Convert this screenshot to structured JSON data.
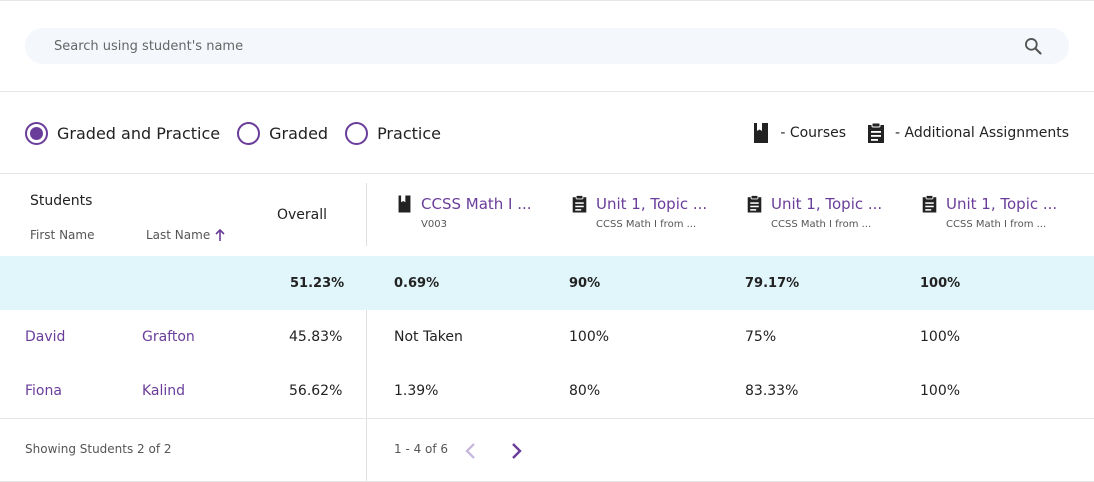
{
  "search": {
    "placeholder": "Search using student's name"
  },
  "filters": {
    "options": [
      {
        "label": "Graded and Practice",
        "selected": true
      },
      {
        "label": "Graded",
        "selected": false
      },
      {
        "label": "Practice",
        "selected": false
      }
    ]
  },
  "legend": {
    "courses_label": "- Courses",
    "assignments_label": "- Additional Assignments"
  },
  "table": {
    "header": {
      "students": "Students",
      "first_name": "First Name",
      "last_name": "Last Name",
      "overall": "Overall"
    },
    "columns": [
      {
        "title": "CCSS Math I ...",
        "subtitle": "V003",
        "icon": "book-icon"
      },
      {
        "title": "Unit 1, Topic ...",
        "subtitle": "CCSS Math I from ...",
        "icon": "clipboard-icon"
      },
      {
        "title": "Unit 1, Topic ...",
        "subtitle": "CCSS Math I from ...",
        "icon": "clipboard-icon"
      },
      {
        "title": "Unit 1, Topic ...",
        "subtitle": "CCSS Math I from ...",
        "icon": "clipboard-icon"
      }
    ],
    "summary": {
      "overall": "51.23%",
      "values": [
        "0.69%",
        "90%",
        "79.17%",
        "100%"
      ]
    },
    "rows": [
      {
        "first": "David",
        "last": "Grafton",
        "overall": "45.83%",
        "values": [
          "Not Taken",
          "100%",
          "75%",
          "100%"
        ]
      },
      {
        "first": "Fiona",
        "last": "Kalind",
        "overall": "56.62%",
        "values": [
          "1.39%",
          "80%",
          "83.33%",
          "100%"
        ]
      }
    ]
  },
  "footer": {
    "showing": "Showing Students 2 of 2",
    "page_range": "1 - 4 of 6"
  },
  "colors": {
    "accent": "#6a3d9a",
    "summary_bg": "#e1f6fb",
    "search_bg": "#f4f7fc"
  }
}
